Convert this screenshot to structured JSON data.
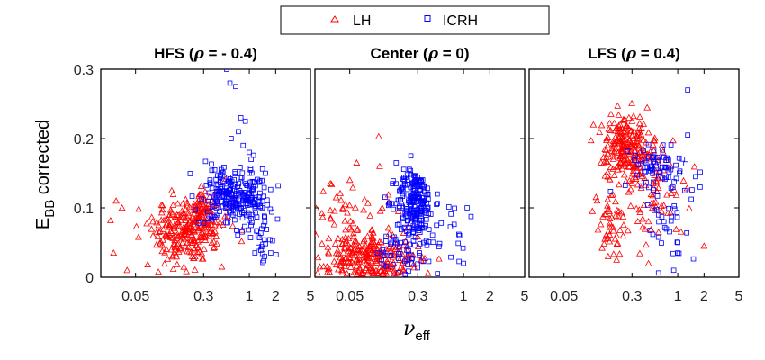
{
  "chart_data": {
    "type": "scatter",
    "xscale": "log",
    "xlim": [
      0.02,
      5
    ],
    "ylim": [
      0,
      0.3
    ],
    "xticks": [
      0.05,
      0.3,
      1,
      2,
      5
    ],
    "xtick_labels": [
      "0.05",
      "0.3",
      "1",
      "2",
      "5"
    ],
    "yticks": [
      0,
      0.1,
      0.2,
      0.3
    ],
    "ytick_labels": [
      "0",
      "0.1",
      "0.2",
      "0.3"
    ],
    "ylabel_main": "E",
    "ylabel_sub": "BB",
    "ylabel_rest": " corrected",
    "xlabel_main": "ν",
    "xlabel_sub": "eff",
    "grid": false,
    "legend_position": "top-center",
    "series_colors": {
      "LH": "#ff0000",
      "ICRH": "#0000ff"
    },
    "legend": [
      {
        "name": "LH",
        "marker": "triangle",
        "color": "#ff0000"
      },
      {
        "name": "ICRH",
        "marker": "square",
        "color": "#0000ff"
      }
    ],
    "panels": [
      {
        "title_pre": "HFS (",
        "title_rho": "ρ",
        "title_post": " = - 0.4)",
        "series": [
          {
            "name": "LH",
            "clusters": [
              {
                "cx": 0.2,
                "cy": 0.07,
                "sx": 0.22,
                "sy": 0.025,
                "n": 260
              },
              {
                "cx": 0.3,
                "cy": 0.1,
                "sx": 0.15,
                "sy": 0.02,
                "n": 50
              }
            ],
            "points": [
              [
                0.028,
                0.035
              ],
              [
                0.04,
                0.01
              ],
              [
                0.03,
                0.11
              ],
              [
                0.035,
                0.1
              ]
            ]
          },
          {
            "name": "ICRH",
            "clusters": [
              {
                "cx": 0.65,
                "cy": 0.12,
                "sx": 0.17,
                "sy": 0.02,
                "n": 230
              },
              {
                "cx": 1.2,
                "cy": 0.09,
                "sx": 0.12,
                "sy": 0.02,
                "n": 40
              },
              {
                "cx": 1.4,
                "cy": 0.045,
                "sx": 0.08,
                "sy": 0.015,
                "n": 18
              }
            ],
            "points": [
              [
                0.55,
                0.3
              ],
              [
                0.6,
                0.28
              ],
              [
                0.7,
                0.275
              ],
              [
                0.8,
                0.23
              ],
              [
                0.9,
                0.225
              ],
              [
                0.62,
                0.2
              ],
              [
                0.75,
                0.21
              ],
              [
                0.85,
                0.19
              ],
              [
                1.0,
                0.18
              ],
              [
                1.05,
                0.17
              ]
            ]
          }
        ]
      },
      {
        "title_pre": "Center (",
        "title_rho": "ρ",
        "title_post": " = 0)",
        "series": [
          {
            "name": "LH",
            "clusters": [
              {
                "cx": 0.08,
                "cy": 0.03,
                "sx": 0.28,
                "sy": 0.018,
                "n": 260
              },
              {
                "cx": 0.05,
                "cy": 0.1,
                "sx": 0.2,
                "sy": 0.03,
                "n": 40
              }
            ],
            "points": [
              [
                0.03,
                0.135
              ],
              [
                0.035,
                0.115
              ],
              [
                0.06,
                0.165
              ],
              [
                0.05,
                0.14
              ],
              [
                0.11,
                0.16
              ],
              [
                0.18,
                0.095
              ]
            ]
          },
          {
            "name": "ICRH",
            "clusters": [
              {
                "cx": 0.28,
                "cy": 0.11,
                "sx": 0.11,
                "sy": 0.022,
                "n": 200
              },
              {
                "cx": 0.22,
                "cy": 0.045,
                "sx": 0.16,
                "sy": 0.02,
                "n": 60
              },
              {
                "cx": 0.6,
                "cy": 0.07,
                "sx": 0.2,
                "sy": 0.03,
                "n": 25
              }
            ],
            "points": [
              [
                0.17,
                0.165
              ],
              [
                0.25,
                0.175
              ],
              [
                0.9,
                0.06
              ],
              [
                1.0,
                0.02
              ],
              [
                1.1,
                0.1
              ],
              [
                0.5,
                0.12
              ]
            ]
          }
        ]
      },
      {
        "title_pre": "LFS (",
        "title_rho": "ρ",
        "title_post": " = 0.4)",
        "series": [
          {
            "name": "LH",
            "clusters": [
              {
                "cx": 0.25,
                "cy": 0.185,
                "sx": 0.14,
                "sy": 0.025,
                "n": 220
              },
              {
                "cx": 0.18,
                "cy": 0.075,
                "sx": 0.09,
                "sy": 0.025,
                "n": 50
              },
              {
                "cx": 0.45,
                "cy": 0.15,
                "sx": 0.2,
                "sy": 0.03,
                "n": 45
              },
              {
                "cx": 0.6,
                "cy": 0.08,
                "sx": 0.15,
                "sy": 0.03,
                "n": 25
              }
            ],
            "points": [
              [
                2.0,
                0.045
              ],
              [
                0.16,
                0.03
              ],
              [
                0.2,
                0.025
              ],
              [
                0.22,
                0.22
              ],
              [
                0.3,
                0.225
              ]
            ]
          },
          {
            "name": "ICRH",
            "clusters": [
              {
                "cx": 0.6,
                "cy": 0.16,
                "sx": 0.18,
                "sy": 0.02,
                "n": 70
              },
              {
                "cx": 0.8,
                "cy": 0.09,
                "sx": 0.2,
                "sy": 0.03,
                "n": 30
              }
            ],
            "points": [
              [
                1.3,
                0.27
              ],
              [
                1.3,
                0.205
              ],
              [
                1.8,
                0.13
              ],
              [
                1.6,
                0.145
              ],
              [
                1.0,
                0.05
              ],
              [
                0.9,
                0.01
              ],
              [
                1.0,
                0.035
              ],
              [
                1.2,
                0.125
              ]
            ]
          }
        ]
      }
    ]
  }
}
